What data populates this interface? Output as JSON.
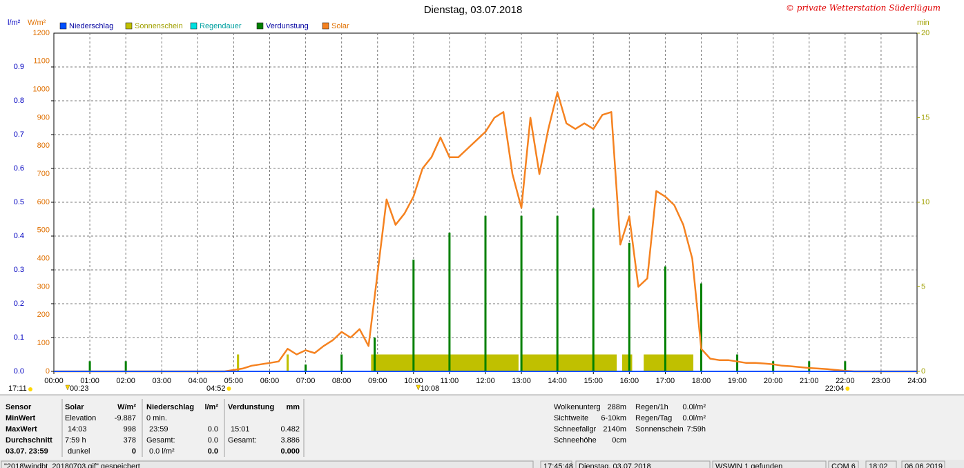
{
  "chart_data": {
    "type": "line",
    "title": "Dienstag, 03.07.2018",
    "copyright": "© private Wetterstation Süderlügum",
    "ylabel": "l/m²",
    "y2label": "W/m²",
    "y3label": "min",
    "xlim": [
      0,
      24
    ],
    "xticks": [
      {
        "value": 0,
        "label": "00:00"
      },
      {
        "value": 1,
        "label": "01:00"
      },
      {
        "value": 2,
        "label": "02:00"
      },
      {
        "value": 3,
        "label": "03:00"
      },
      {
        "value": 4,
        "label": "04:00"
      },
      {
        "value": 5,
        "label": "05:00"
      },
      {
        "value": 6,
        "label": "06:00"
      },
      {
        "value": 7,
        "label": "07:00"
      },
      {
        "value": 8,
        "label": "08:00"
      },
      {
        "value": 9,
        "label": "09:00"
      },
      {
        "value": 10,
        "label": "10:00"
      },
      {
        "value": 11,
        "label": "11:00"
      },
      {
        "value": 12,
        "label": "12:00"
      },
      {
        "value": 13,
        "label": "13:00"
      },
      {
        "value": 14,
        "label": "14:00"
      },
      {
        "value": 15,
        "label": "15:00"
      },
      {
        "value": 16,
        "label": "16:00"
      },
      {
        "value": 17,
        "label": "17:00"
      },
      {
        "value": 18,
        "label": "18:00"
      },
      {
        "value": 19,
        "label": "19:00"
      },
      {
        "value": 20,
        "label": "20:00"
      },
      {
        "value": 21,
        "label": "21:00"
      },
      {
        "value": 22,
        "label": "22:00"
      },
      {
        "value": 23,
        "label": "23:00"
      },
      {
        "value": 24,
        "label": "24:00"
      }
    ],
    "ylim": [
      0,
      1
    ],
    "yticks": [
      {
        "value": 0,
        "label": "0.0"
      },
      0.1,
      0.2,
      0.3,
      0.4,
      0.5,
      0.6,
      0.7,
      0.8,
      0.9
    ],
    "y2lim": [
      0,
      1200
    ],
    "y2ticks": [
      0,
      100,
      200,
      300,
      400,
      500,
      600,
      700,
      800,
      900,
      1000,
      1100,
      1200
    ],
    "y3lim": [
      0,
      20
    ],
    "y3ticks": [
      0,
      5,
      10,
      15,
      20
    ],
    "grid": true,
    "series": [
      {
        "name": "Niederschlag",
        "color": "#0050ff",
        "kind": "line",
        "x": [
          0,
          24
        ],
        "values": [
          0,
          0
        ]
      },
      {
        "name": "Sonnenschein",
        "color": "#c0c000",
        "kind": "span",
        "axis": "y3",
        "x": [
          5.09,
          6.47,
          8.82,
          12.97,
          15.8,
          16.4
        ],
        "x2": [
          5.15,
          6.53,
          12.92,
          15.65,
          16.08,
          17.78
        ],
        "values": [
          1,
          1,
          1,
          1,
          1,
          1
        ]
      },
      {
        "name": "Regendauer",
        "color": "#00e0e0",
        "kind": "span",
        "axis": "y3",
        "x": [],
        "x2": [],
        "values": []
      },
      {
        "name": "Verdunstung",
        "color": "#008000",
        "kind": "spike",
        "x": [
          1,
          2,
          7,
          8,
          8.92,
          10,
          11,
          12,
          13,
          14,
          15,
          16,
          17,
          18,
          19,
          20,
          21,
          22
        ],
        "values": [
          0.03,
          0.03,
          0.02,
          0.05,
          0.1,
          0.33,
          0.41,
          0.46,
          0.46,
          0.46,
          0.482,
          0.38,
          0.31,
          0.26,
          0.05,
          0.03,
          0.03,
          0.03
        ]
      },
      {
        "name": "Solar",
        "color": "#f58220",
        "kind": "line",
        "axis": "y2",
        "x": [
          0,
          4.75,
          5,
          5.25,
          5.5,
          5.75,
          6,
          6.25,
          6.5,
          6.75,
          7,
          7.25,
          7.5,
          7.75,
          8,
          8.25,
          8.5,
          8.75,
          9,
          9.25,
          9.5,
          9.75,
          10,
          10.25,
          10.5,
          10.75,
          11,
          11.25,
          11.5,
          11.75,
          12,
          12.25,
          12.5,
          12.75,
          13,
          13.25,
          13.5,
          13.75,
          14,
          14.25,
          14.5,
          14.75,
          15,
          15.25,
          15.5,
          15.75,
          16,
          16.25,
          16.5,
          16.75,
          17,
          17.25,
          17.5,
          17.75,
          18,
          18.25,
          18.5,
          18.75,
          19,
          19.25,
          19.5,
          19.75,
          20,
          20.25,
          20.5,
          20.75,
          21,
          21.25,
          21.5,
          21.75,
          22,
          22.25,
          24
        ],
        "values": [
          0,
          0,
          5,
          10,
          20,
          25,
          30,
          35,
          80,
          60,
          75,
          65,
          90,
          110,
          140,
          120,
          150,
          90,
          350,
          610,
          520,
          560,
          620,
          720,
          760,
          830,
          760,
          760,
          790,
          820,
          850,
          900,
          920,
          700,
          580,
          900,
          700,
          860,
          990,
          880,
          860,
          880,
          860,
          910,
          920,
          450,
          550,
          300,
          330,
          640,
          620,
          590,
          520,
          400,
          80,
          45,
          40,
          40,
          35,
          30,
          30,
          28,
          25,
          20,
          18,
          15,
          12,
          10,
          8,
          5,
          2,
          0,
          0
        ]
      }
    ],
    "annotations": [
      {
        "x": 0.383,
        "label": "00:23",
        "marker": "triangle"
      },
      {
        "x": 4.867,
        "label": "04:52",
        "marker": "dot"
      },
      {
        "x": 10.133,
        "label": "10:08",
        "marker": "triangle"
      },
      {
        "x": 22.067,
        "label": "22:04",
        "marker": "dot"
      }
    ],
    "left_time": "17:11"
  },
  "stats": {
    "header": [
      "Sensor",
      "Solar",
      "W/m²",
      "Niederschlag",
      "l/m²",
      "Verdunstung",
      "mm"
    ],
    "rows": [
      [
        "MinWert",
        "Elevation",
        "-9.887",
        "0 min.",
        null,
        null,
        null
      ],
      [
        "MaxWert",
        "14:03",
        "998",
        "23:59",
        "0.0",
        "15:01",
        "0.482"
      ],
      [
        "Durchschnitt",
        "7:59 h",
        "378",
        "Gesamt:",
        "0.0",
        "Gesamt:",
        "3.886"
      ],
      [
        "03.07. 23:59",
        "dunkel",
        "0",
        "0.0 l/m²",
        "0.0",
        null,
        "0.000"
      ]
    ]
  },
  "info": [
    [
      [
        "Wolkenunterg",
        "288m"
      ],
      [
        "Sichtweite",
        "6-10km"
      ],
      [
        "Schneefallgr",
        "2140m"
      ],
      [
        "Schneehöhe",
        "0cm"
      ]
    ],
    [
      [
        "Regen/1h",
        "0.0l/m²"
      ],
      [
        "Regen/Tag",
        "0.0l/m²"
      ],
      [
        "Sonnenschein",
        "7:59h"
      ]
    ]
  ],
  "status": [
    "\"2018\\windbt_20180703.gif\" gespeichert",
    "17:45:48",
    "Dienstag, 03.07.2018",
    "WSWIN 1 gefunden",
    "COM 6",
    "18:02",
    "06.06.2019"
  ]
}
